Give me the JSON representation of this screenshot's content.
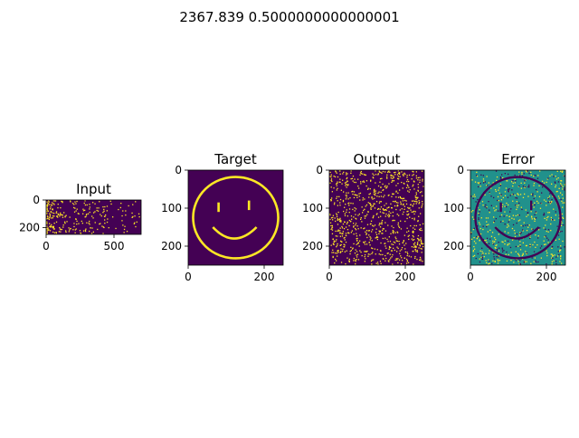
{
  "figure": {
    "suptitle": "2367.839 0.5000000000000001"
  },
  "colors": {
    "dark": "#440154",
    "bright": "#fde725",
    "mid": "#21918c",
    "axis": "#000000"
  },
  "chart_data": [
    {
      "type": "heatmap",
      "title": "Input",
      "xlabel": "",
      "ylabel": "",
      "xlim": [
        0,
        700
      ],
      "ylim": [
        250,
        0
      ],
      "xticks": [
        0,
        500
      ],
      "yticks": [
        0,
        200
      ],
      "colormap": "viridis",
      "description_values": "sparse binary spike raster, denser on the left"
    },
    {
      "type": "heatmap",
      "title": "Target",
      "xlabel": "",
      "ylabel": "",
      "xlim": [
        0,
        250
      ],
      "ylim": [
        250,
        0
      ],
      "xticks": [
        0,
        200
      ],
      "yticks": [
        0,
        100,
        200
      ],
      "colormap": "viridis",
      "description_values": "smiley face drawn in bright on dark background"
    },
    {
      "type": "heatmap",
      "title": "Output",
      "xlabel": "",
      "ylabel": "",
      "xlim": [
        0,
        250
      ],
      "ylim": [
        250,
        0
      ],
      "xticks": [
        0,
        200
      ],
      "yticks": [
        0,
        100,
        200
      ],
      "colormap": "viridis",
      "description_values": "random sparse bright pixels on dark background"
    },
    {
      "type": "heatmap",
      "title": "Error",
      "xlabel": "",
      "ylabel": "",
      "xlim": [
        0,
        250
      ],
      "ylim": [
        250,
        0
      ],
      "xticks": [
        0,
        200
      ],
      "yticks": [
        0,
        100,
        200
      ],
      "colormap": "viridis",
      "description_values": "mid-level background with dark smiley and scattered bright pixels"
    }
  ]
}
